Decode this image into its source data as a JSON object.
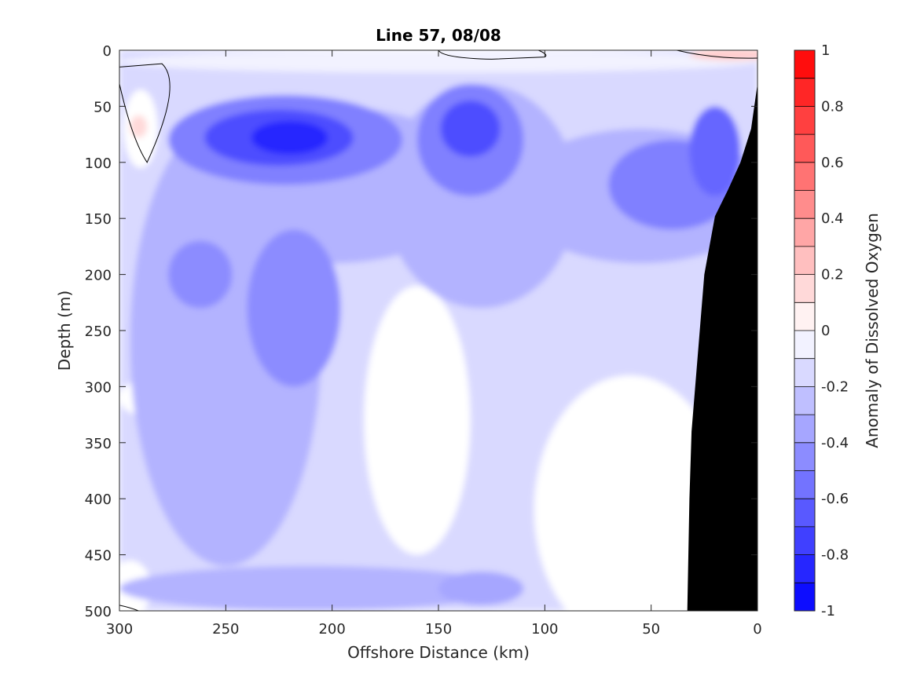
{
  "chart_data": {
    "type": "heatmap",
    "subtype": "filled-contour",
    "title": "Line 57, 08/08",
    "xlabel": "Offshore Distance (km)",
    "ylabel": "Depth (m)",
    "xlim": [
      300,
      0
    ],
    "ylim": [
      0,
      500
    ],
    "x_reversed": true,
    "y_reversed": true,
    "x_ticks": [
      300,
      250,
      200,
      150,
      100,
      50,
      0
    ],
    "y_ticks": [
      0,
      50,
      100,
      150,
      200,
      250,
      300,
      350,
      400,
      450,
      500
    ],
    "colorbar": {
      "label": "Anomaly of Dissolved Oxygen",
      "range": [
        -1,
        1
      ],
      "ticks": [
        "1",
        "0.8",
        "0.6",
        "0.4",
        "0.2",
        "0",
        "-0.2",
        "-0.4",
        "-0.6",
        "-0.8",
        "-1"
      ],
      "levels": [
        -1,
        -0.9,
        -0.8,
        -0.7,
        -0.6,
        -0.5,
        -0.4,
        -0.3,
        -0.2,
        -0.1,
        0,
        0.1,
        0.2,
        0.3,
        0.4,
        0.5,
        0.6,
        0.7,
        0.8,
        0.9,
        1
      ],
      "colormap": "blue-white-red"
    },
    "features": [
      {
        "name": "minimum",
        "x_km": 222,
        "depth_m": 75,
        "value": -0.8
      },
      {
        "name": "minimum",
        "x_km": 135,
        "depth_m": 65,
        "value": -0.7
      },
      {
        "name": "minimum",
        "x_km": 218,
        "depth_m": 215,
        "value": -0.5
      },
      {
        "name": "minimum",
        "x_km": 260,
        "depth_m": 200,
        "value": -0.5
      },
      {
        "name": "minimum",
        "x_km": 20,
        "depth_m": 100,
        "value": -0.6
      },
      {
        "name": "maximum",
        "x_km": 290,
        "depth_m": 65,
        "value": 0.15
      },
      {
        "name": "maximum",
        "x_km": 10,
        "depth_m": 5,
        "value": 0.2
      }
    ],
    "seafloor": [
      [
        33,
        500
      ],
      [
        32,
        400
      ],
      [
        31,
        340
      ],
      [
        25,
        200
      ],
      [
        20,
        148
      ],
      [
        14,
        125
      ],
      [
        8,
        100
      ],
      [
        3,
        70
      ],
      [
        0,
        30
      ]
    ],
    "colors": {
      "bathymetry": "#000000",
      "contour_line": "#000000"
    }
  }
}
